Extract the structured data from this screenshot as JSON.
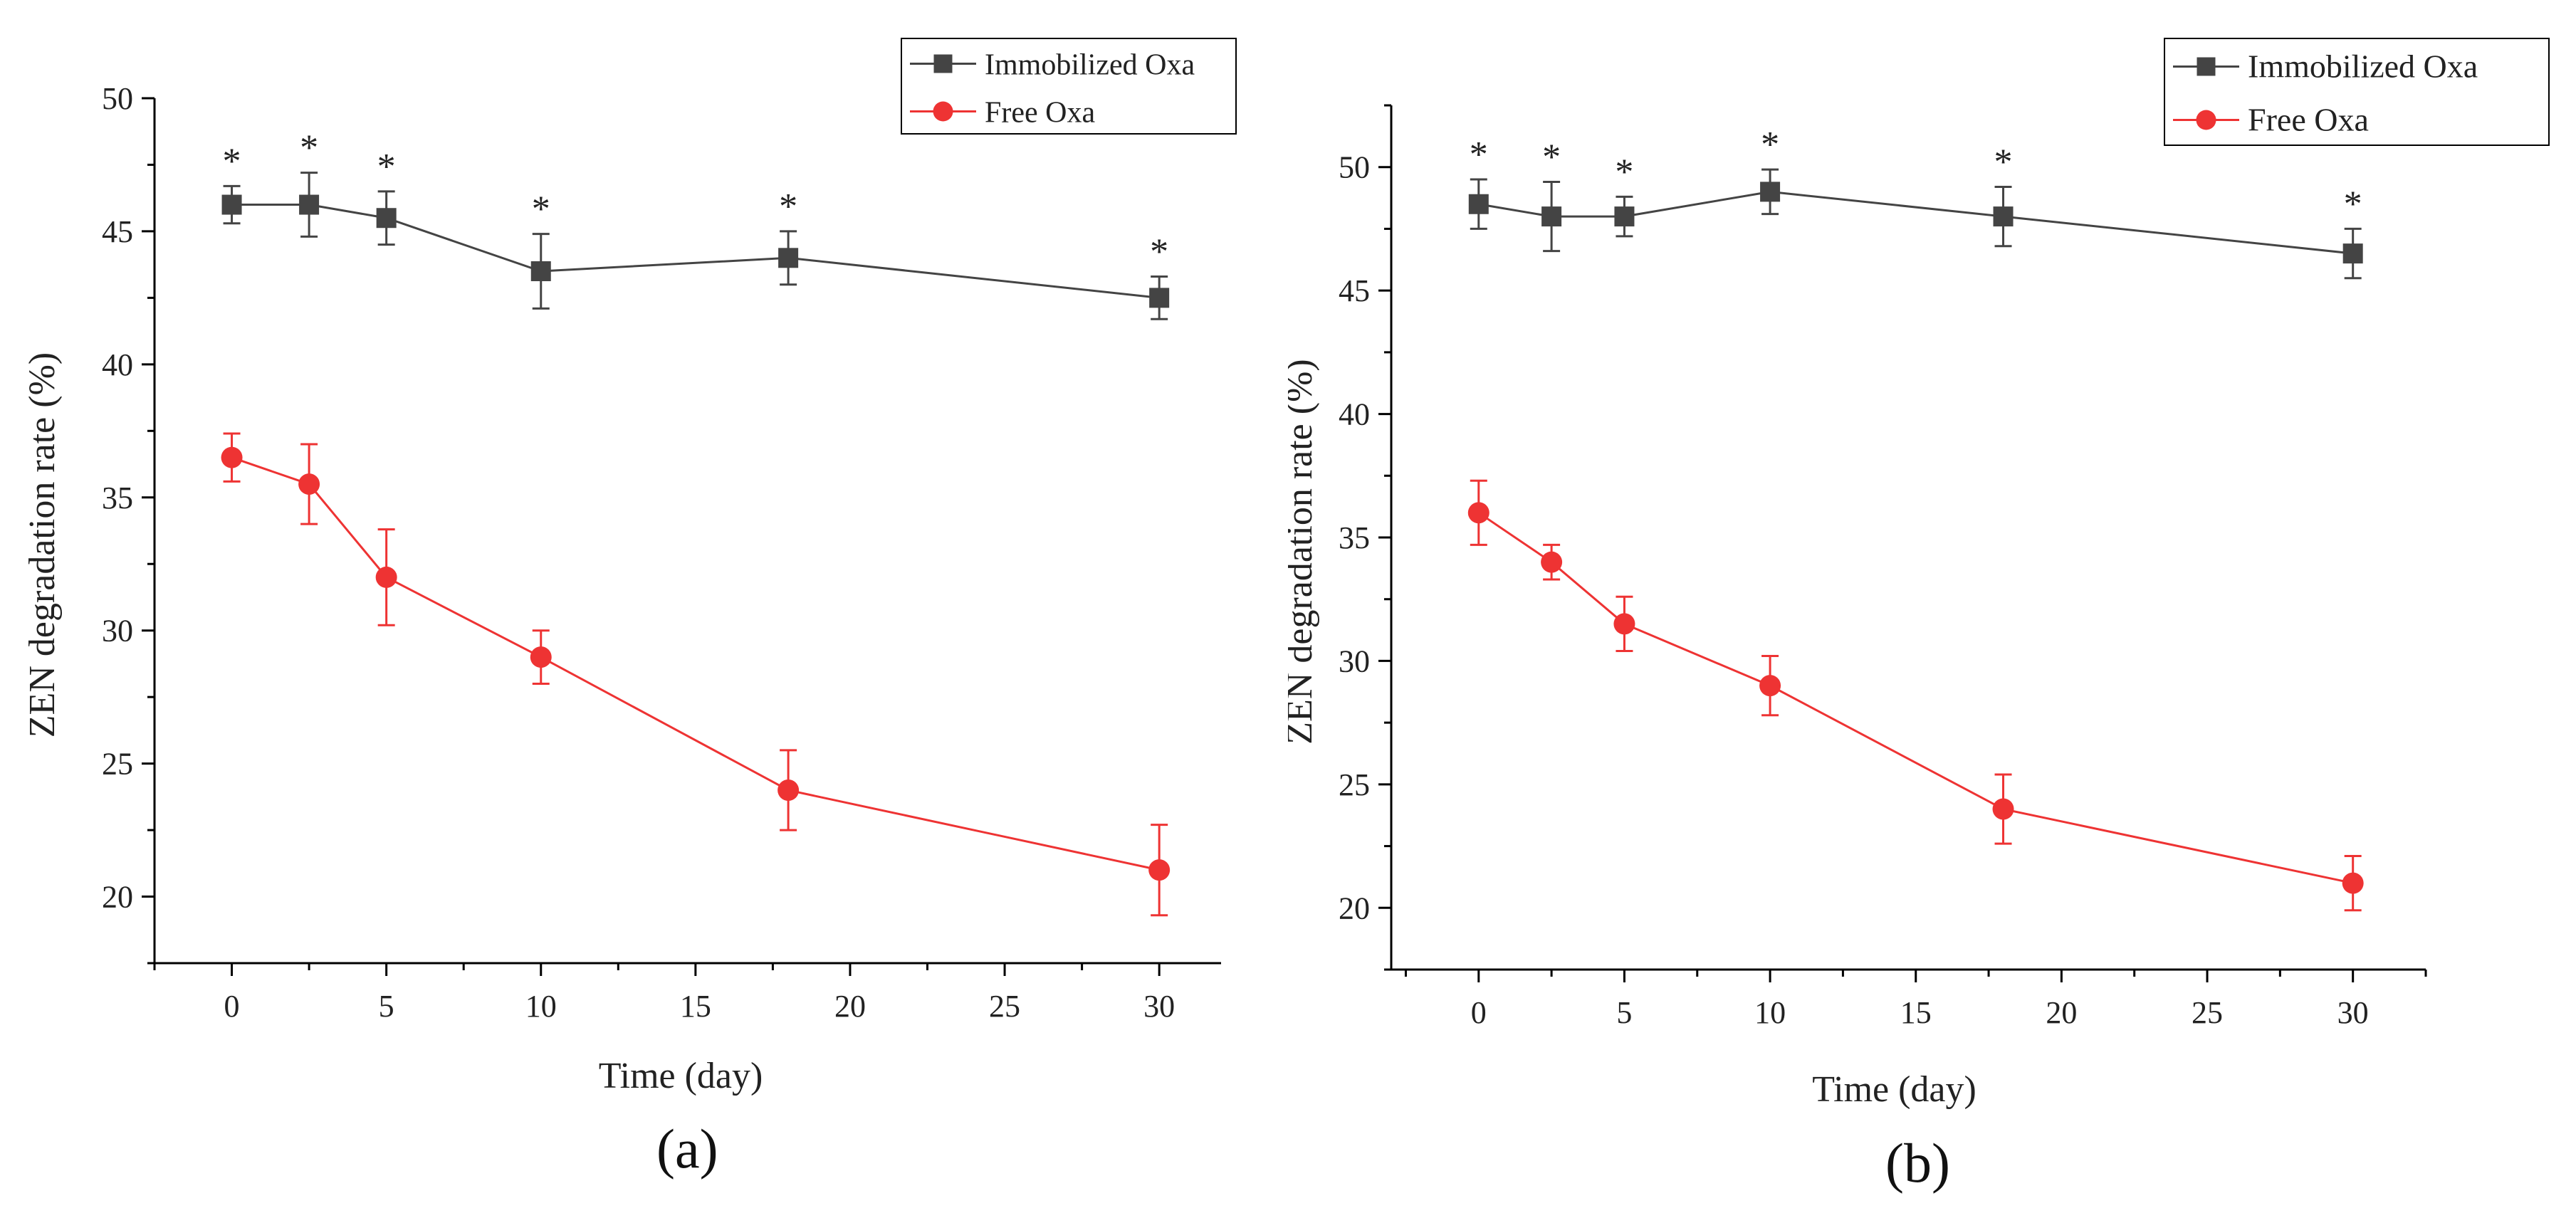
{
  "colors": {
    "immobilized": "#444444",
    "free": "#ee3333",
    "axis": "#000000"
  },
  "chart_data": [
    {
      "type": "line",
      "panel_label": "(a)",
      "xlabel": "Time (day)",
      "ylabel": "ZEN degradation rate (%)",
      "xlim": [
        -2.5,
        32
      ],
      "ylim": [
        17.5,
        50
      ],
      "xticks": [
        0,
        5,
        10,
        15,
        20,
        25,
        30
      ],
      "yticks": [
        20,
        25,
        30,
        35,
        40,
        45,
        50
      ],
      "legend_position": "top-right",
      "significance_marker": "*",
      "series": [
        {
          "name": "Immobilized Oxa",
          "marker": "square",
          "x": [
            0,
            2.5,
            5,
            10,
            18,
            30
          ],
          "y": [
            46,
            46,
            45.5,
            43.5,
            44,
            42.5
          ],
          "err": [
            0.7,
            1.2,
            1.0,
            1.4,
            1.0,
            0.8
          ]
        },
        {
          "name": "Free Oxa",
          "marker": "circle",
          "x": [
            0,
            2.5,
            5,
            10,
            18,
            30
          ],
          "y": [
            36.5,
            35.5,
            32,
            29,
            24,
            21
          ],
          "err": [
            0.9,
            1.5,
            1.8,
            1.0,
            1.5,
            1.7
          ]
        }
      ]
    },
    {
      "type": "line",
      "panel_label": "(b)",
      "xlabel": "Time (day)",
      "ylabel": "ZEN degradation rate (%)",
      "xlim": [
        -3,
        32.5
      ],
      "ylim": [
        17.5,
        52.5
      ],
      "xticks": [
        0,
        5,
        10,
        15,
        20,
        25,
        30
      ],
      "yticks": [
        20,
        25,
        30,
        35,
        40,
        45,
        50
      ],
      "legend_position": "top-right",
      "significance_marker": "*",
      "series": [
        {
          "name": "Immobilized Oxa",
          "marker": "square",
          "x": [
            0,
            2.5,
            5,
            10,
            18,
            30
          ],
          "y": [
            48.5,
            48,
            48,
            49,
            48,
            46.5
          ],
          "err": [
            1.0,
            1.4,
            0.8,
            0.9,
            1.2,
            1.0
          ]
        },
        {
          "name": "Free Oxa",
          "marker": "circle",
          "x": [
            0,
            2.5,
            5,
            10,
            18,
            30
          ],
          "y": [
            36,
            34,
            31.5,
            29,
            24,
            21
          ],
          "err": [
            1.3,
            0.7,
            1.1,
            1.2,
            1.4,
            1.1
          ]
        }
      ]
    }
  ]
}
